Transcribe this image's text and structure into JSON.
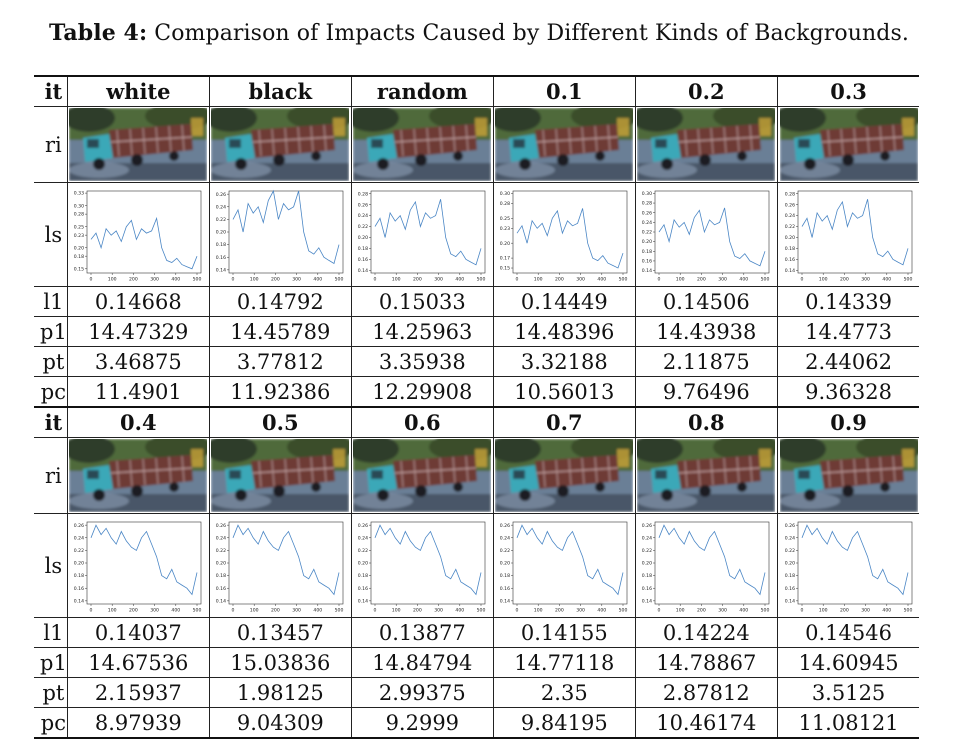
{
  "caption": {
    "label": "Table 4:",
    "text": "Comparison of Impacts Caused by Different Kinds of Backgrounds."
  },
  "row_labels": {
    "it": "it",
    "ri": "ri",
    "ls": "ls",
    "l1": "l1",
    "p1": "p1",
    "pt": "pt",
    "pc": "pc"
  },
  "blocks": [
    {
      "headers": [
        "white",
        "black",
        "random",
        "0.1",
        "0.2",
        "0.3"
      ],
      "l1": [
        "0.14668",
        "0.14792",
        "0.15033",
        "0.14449",
        "0.14506",
        "0.14339"
      ],
      "p1": [
        "14.47329",
        "14.45789",
        "14.25963",
        "14.48396",
        "14.43938",
        "14.4773"
      ],
      "pt": [
        "3.46875",
        "3.77812",
        "3.35938",
        "3.32188",
        "2.11875",
        "2.44062"
      ],
      "pc": [
        "11.4901",
        "11.92386",
        "12.29908",
        "10.56013",
        "9.76496",
        "9.36328"
      ]
    },
    {
      "headers": [
        "0.4",
        "0.5",
        "0.6",
        "0.7",
        "0.8",
        "0.9"
      ],
      "l1": [
        "0.14037",
        "0.13457",
        "0.13877",
        "0.14155",
        "0.14224",
        "0.14546"
      ],
      "p1": [
        "14.67536",
        "15.03836",
        "14.84794",
        "14.77118",
        "14.78867",
        "14.60945"
      ],
      "pt": [
        "2.15937",
        "1.98125",
        "2.99375",
        "2.35",
        "2.87812",
        "3.5125"
      ],
      "pc": [
        "8.97939",
        "9.04309",
        "9.2999",
        "9.84195",
        "10.46174",
        "11.08121"
      ]
    }
  ],
  "plots": [
    {
      "yticks": [
        "0.33",
        "0.30",
        "0.28",
        "0.25",
        "0.23",
        "0.20",
        "0.18",
        "0.15"
      ],
      "ymin": 0.14,
      "ymax": 0.335
    },
    {
      "yticks": [
        "0.26",
        "0.24",
        "0.22",
        "0.20",
        "0.18",
        "0.16",
        "0.14"
      ],
      "ymin": 0.135,
      "ymax": 0.265
    },
    {
      "yticks": [
        "0.28",
        "0.26",
        "0.24",
        "0.22",
        "0.20",
        "0.18",
        "0.16",
        "0.14"
      ],
      "ymin": 0.135,
      "ymax": 0.285
    },
    {
      "yticks": [
        "0.30",
        "0.28",
        "0.25",
        "0.23",
        "0.20",
        "0.17",
        "0.15"
      ],
      "ymin": 0.14,
      "ymax": 0.305
    },
    {
      "yticks": [
        "0.30",
        "0.28",
        "0.26",
        "0.24",
        "0.22",
        "0.20",
        "0.18",
        "0.16",
        "0.14"
      ],
      "ymin": 0.135,
      "ymax": 0.305
    },
    {
      "yticks": [
        "0.28",
        "0.26",
        "0.24",
        "0.22",
        "0.20",
        "0.18",
        "0.16",
        "0.14"
      ],
      "ymin": 0.135,
      "ymax": 0.285
    },
    {
      "yticks": [
        "0.26",
        "0.24",
        "0.22",
        "0.20",
        "0.18",
        "0.16",
        "0.14"
      ],
      "ymin": 0.135,
      "ymax": 0.265
    },
    {
      "yticks": [
        "0.26",
        "0.24",
        "0.22",
        "0.20",
        "0.18",
        "0.16",
        "0.14"
      ],
      "ymin": 0.135,
      "ymax": 0.265
    },
    {
      "yticks": [
        "0.26",
        "0.24",
        "0.22",
        "0.20",
        "0.18",
        "0.16",
        "0.14"
      ],
      "ymin": 0.135,
      "ymax": 0.265
    },
    {
      "yticks": [
        "0.26",
        "0.24",
        "0.22",
        "0.20",
        "0.18",
        "0.16",
        "0.14"
      ],
      "ymin": 0.135,
      "ymax": 0.265
    },
    {
      "yticks": [
        "0.26",
        "0.24",
        "0.22",
        "0.20",
        "0.18",
        "0.16",
        "0.14"
      ],
      "ymin": 0.135,
      "ymax": 0.265
    },
    {
      "yticks": [
        "0.26",
        "0.24",
        "0.22",
        "0.20",
        "0.18",
        "0.16",
        "0.14"
      ],
      "ymin": 0.135,
      "ymax": 0.265
    }
  ],
  "plot_xticks": [
    "0",
    "100",
    "200",
    "300",
    "400",
    "500"
  ],
  "plot_series_a": [
    0.22,
    0.235,
    0.2,
    0.245,
    0.23,
    0.24,
    0.215,
    0.25,
    0.265,
    0.22,
    0.245,
    0.235,
    0.24,
    0.27,
    0.2,
    0.17,
    0.165,
    0.175,
    0.16,
    0.155,
    0.15,
    0.18
  ],
  "plot_series_b": [
    0.24,
    0.26,
    0.245,
    0.255,
    0.24,
    0.23,
    0.25,
    0.235,
    0.225,
    0.22,
    0.24,
    0.25,
    0.23,
    0.21,
    0.18,
    0.175,
    0.19,
    0.17,
    0.165,
    0.16,
    0.15,
    0.185
  ],
  "plot_color": "#4a86c5",
  "image_colors": {
    "sky": "#3f4c52",
    "foliage": "#4f6a3a",
    "road": "#6b7f96",
    "truck_cab": "#3aa8b8",
    "truck_bed": "#6e3a34"
  }
}
